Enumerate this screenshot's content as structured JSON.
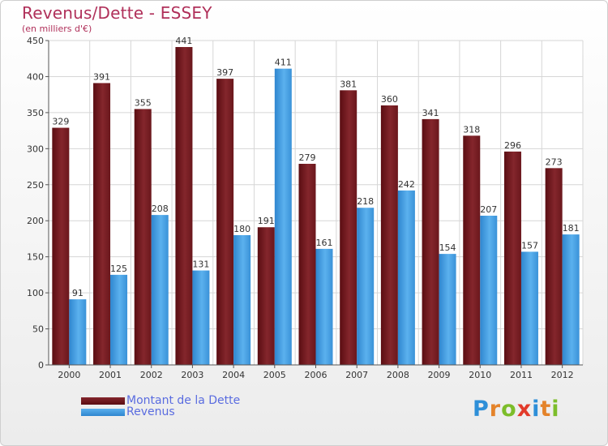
{
  "header": {
    "title": "Revenus/Dette - ESSEY",
    "subtitle": "(en milliers d'€)"
  },
  "chart_data": {
    "type": "bar",
    "title": "Revenus/Dette - ESSEY",
    "ylabel": "(en milliers d'€)",
    "categories": [
      "2000",
      "2001",
      "2002",
      "2003",
      "2004",
      "2005",
      "2006",
      "2007",
      "2008",
      "2009",
      "2010",
      "2011",
      "2012"
    ],
    "series": [
      {
        "name": "Montant de la Dette",
        "color": "#7a1f24",
        "values": [
          329,
          391,
          355,
          441,
          397,
          191,
          279,
          381,
          360,
          341,
          318,
          296,
          273
        ]
      },
      {
        "name": "Revenus",
        "color": "#4ea6e8",
        "values": [
          91,
          125,
          208,
          131,
          180,
          411,
          161,
          218,
          242,
          154,
          207,
          157,
          181
        ]
      }
    ],
    "ylim": [
      0,
      450
    ],
    "yticks": [
      0,
      50,
      100,
      150,
      200,
      250,
      300,
      350,
      400,
      450
    ],
    "grid": true,
    "legend": "bottom-left"
  },
  "logo": {
    "text": "Proxiti",
    "colors": [
      "#2e8fd8",
      "#e4832a",
      "#7cbd2a",
      "#e23a2a",
      "#2e8fd8",
      "#e4832a",
      "#7cbd2a"
    ]
  }
}
